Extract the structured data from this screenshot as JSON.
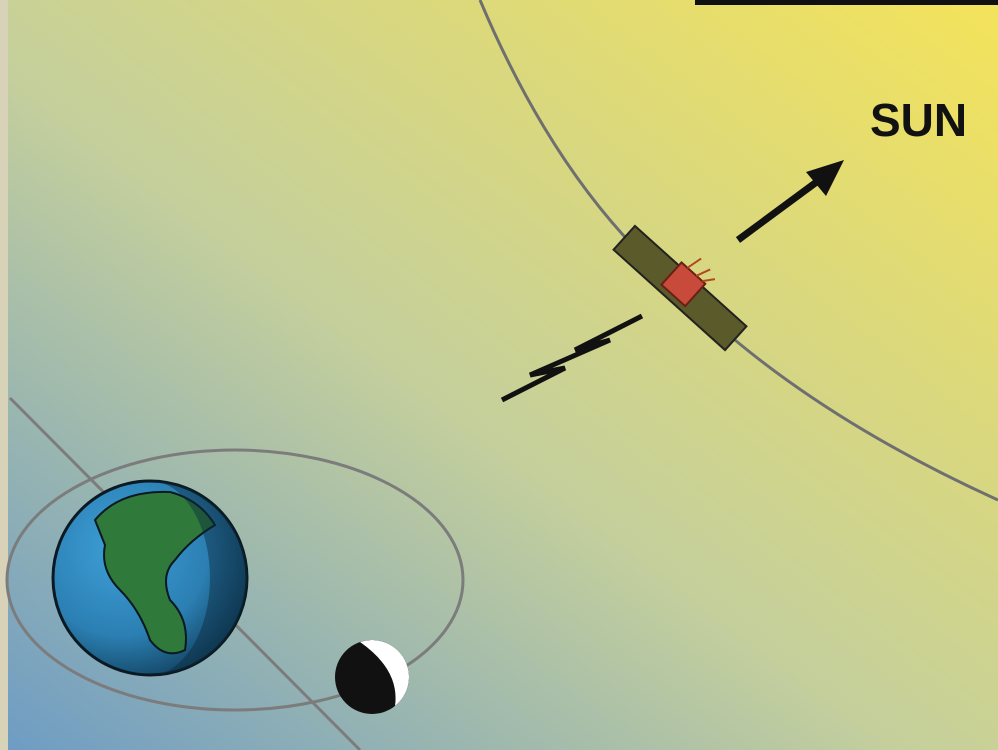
{
  "labels": {
    "sun": "SUN"
  }
}
